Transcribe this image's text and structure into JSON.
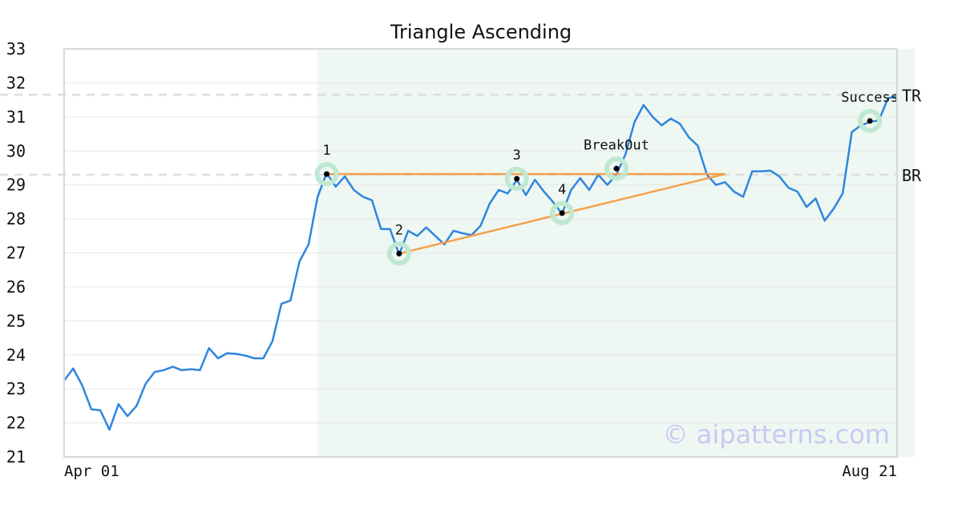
{
  "chart_data": {
    "type": "line",
    "title": "Triangle Ascending",
    "xlabel": "",
    "ylabel": "",
    "x_tick_labels": [
      "Apr 01",
      "Aug 21"
    ],
    "ylim": [
      21,
      33
    ],
    "y_ticks": [
      21,
      22,
      23,
      24,
      25,
      26,
      27,
      28,
      29,
      30,
      31,
      32,
      33
    ],
    "grid": "horizontal",
    "colors": {
      "price": "#2e86de",
      "pattern": "#f5a04a",
      "highlight_band": "#eef7f2",
      "point_halo": "#bfe8d2",
      "level_line": "#dddddd",
      "watermark": "#c9c9f3"
    },
    "series": [
      {
        "values": [
          23.25,
          23.6,
          23.1,
          22.4,
          22.37,
          21.8,
          22.55,
          22.2,
          22.5,
          23.15,
          23.5,
          23.55,
          23.65,
          23.55,
          23.58,
          23.55,
          24.2,
          23.9,
          24.05,
          24.03,
          23.98,
          23.9,
          23.9,
          24.4,
          25.5,
          25.6,
          26.75,
          27.25,
          28.65,
          29.35,
          28.95,
          29.25,
          28.85,
          28.65,
          28.55,
          27.7,
          27.7,
          26.95,
          27.65,
          27.5,
          27.75,
          27.5,
          27.25,
          27.65,
          27.58,
          27.52,
          27.8,
          28.45,
          28.85,
          28.75,
          29.15,
          28.7,
          29.15,
          28.8,
          28.5,
          28.15,
          28.85,
          29.2,
          28.85,
          29.3,
          29.0,
          29.3,
          29.9,
          30.85,
          31.35,
          31.0,
          30.75,
          30.95,
          30.8,
          30.4,
          30.15,
          29.3,
          29.0,
          29.08,
          28.8,
          28.65,
          29.4,
          29.4,
          29.42,
          29.25,
          28.92,
          28.8,
          28.35,
          28.6,
          27.95,
          28.3,
          28.75,
          30.55,
          30.75,
          30.85,
          30.9,
          31.55,
          31.6
        ]
      }
    ],
    "highlight_range": [
      28,
      94
    ],
    "pattern_lines": [
      {
        "from": [
          29,
          29.32
        ],
        "to": [
          73,
          29.32
        ]
      },
      {
        "from": [
          37,
          26.98
        ],
        "to": [
          73,
          29.32
        ]
      }
    ],
    "points": [
      {
        "label": "1",
        "x": 29,
        "y": 29.32
      },
      {
        "label": "2",
        "x": 37,
        "y": 26.98
      },
      {
        "label": "3",
        "x": 50,
        "y": 29.18
      },
      {
        "label": "4",
        "x": 55,
        "y": 28.17
      },
      {
        "label": "BreakOut",
        "x": 61,
        "y": 29.48
      },
      {
        "label": "Success",
        "x": 89,
        "y": 30.88
      }
    ],
    "levels": [
      {
        "label": "TR",
        "y": 31.65
      },
      {
        "label": "BR",
        "y": 29.3
      }
    ],
    "watermark": "© aipatterns.com"
  }
}
